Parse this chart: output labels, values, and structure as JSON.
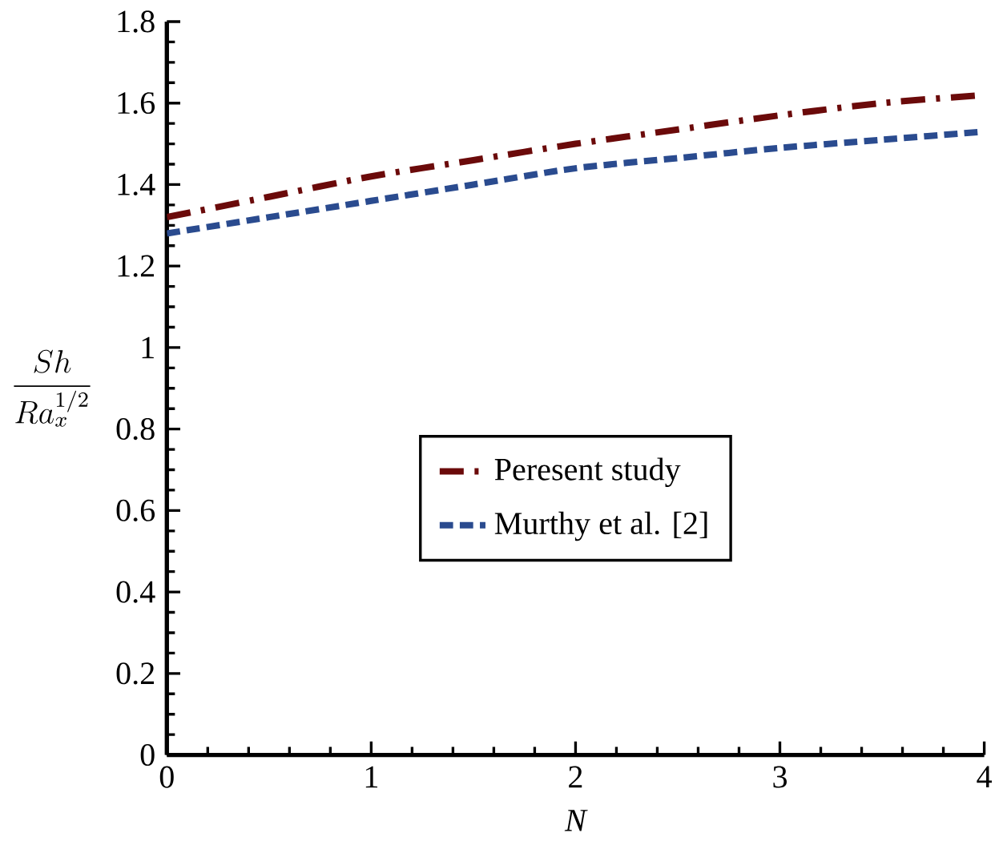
{
  "chart_data": {
    "type": "line",
    "xlabel": "N",
    "ylabel": "\\frac{Sh}{Ra_x^{1/2}}",
    "x": [
      0,
      0.5,
      1,
      1.5,
      2,
      2.5,
      3,
      3.5,
      4
    ],
    "series": [
      {
        "name": "Peresent study",
        "color": "#6b0a0a",
        "line_style": "dashdot",
        "values": [
          1.32,
          1.37,
          1.42,
          1.46,
          1.5,
          1.535,
          1.57,
          1.6,
          1.62
        ]
      },
      {
        "name": "Murthy et al. [2]",
        "color": "#2a4b8f",
        "line_style": "dashed",
        "values": [
          1.28,
          1.32,
          1.36,
          1.4,
          1.44,
          1.465,
          1.49,
          1.51,
          1.53
        ]
      }
    ],
    "xlim": [
      0,
      4
    ],
    "ylim": [
      0,
      1.8
    ],
    "xticks": [
      0,
      1,
      2,
      3,
      4
    ],
    "yticks": [
      0,
      0.2,
      0.4,
      0.6,
      0.8,
      1,
      1.2,
      1.4,
      1.6,
      1.8
    ],
    "legend": "center",
    "grid": false
  }
}
